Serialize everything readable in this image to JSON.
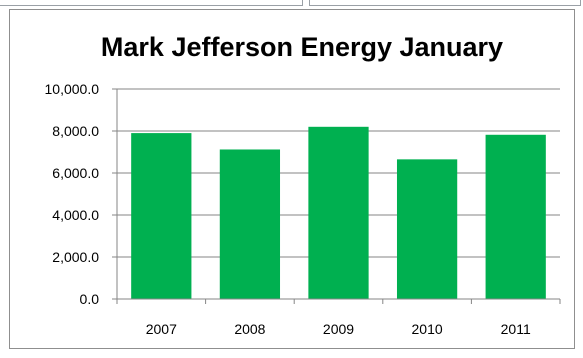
{
  "chart_data": {
    "type": "bar",
    "title": "Mark Jefferson Energy January",
    "xlabel": "",
    "ylabel": "",
    "categories": [
      "2007",
      "2008",
      "2009",
      "2010",
      "2011"
    ],
    "values": [
      7900,
      7120,
      8200,
      6650,
      7820
    ],
    "ylim": [
      0,
      10000
    ],
    "yticks": [
      "0.0",
      "2,000.0",
      "4,000.0",
      "6,000.0",
      "8,000.0",
      "10,000.0"
    ],
    "ytick_values": [
      0,
      2000,
      4000,
      6000,
      8000,
      10000
    ],
    "grid": true,
    "legend": "none",
    "bar_color": "#00b050"
  }
}
